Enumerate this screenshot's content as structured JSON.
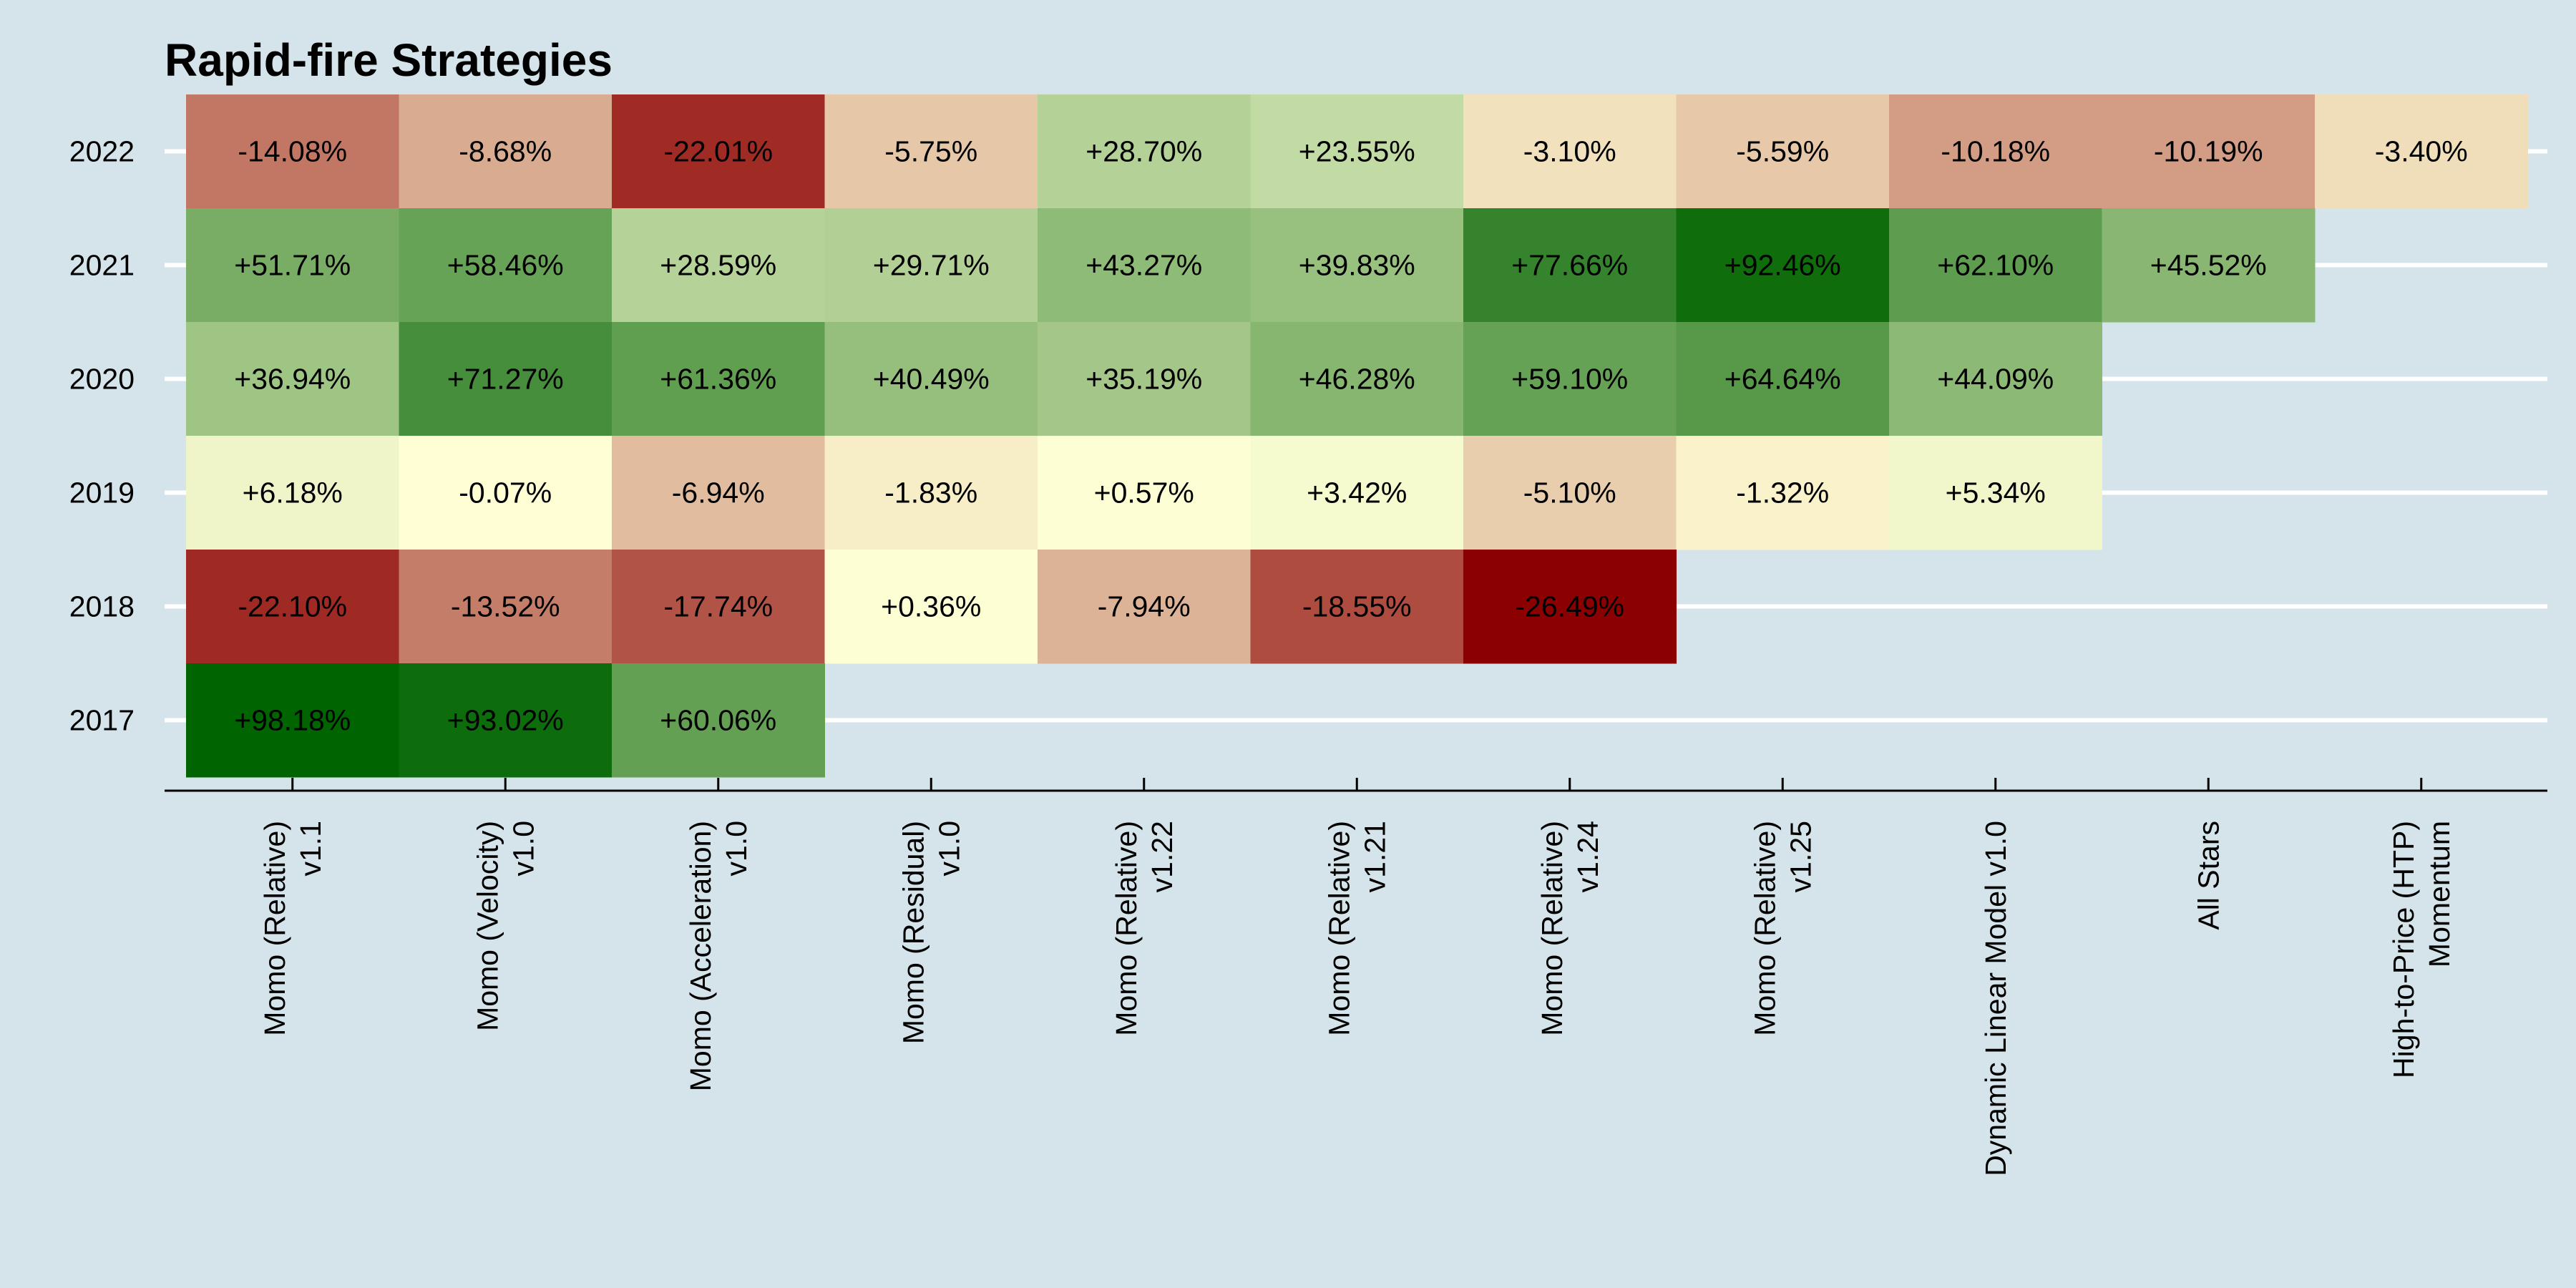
{
  "chart_data": {
    "type": "heatmap",
    "title": "Rapid-fire Strategies",
    "xlabel": "",
    "ylabel": "",
    "legend": "none",
    "grid": "horizontal",
    "years": [
      "2022",
      "2021",
      "2020",
      "2019",
      "2018",
      "2017"
    ],
    "strategies": [
      [
        "Momo (Relative)",
        "v1.1"
      ],
      [
        "Momo (Velocity)",
        "v1.0"
      ],
      [
        "Momo (Acceleration)",
        "v1.0"
      ],
      [
        "Momo (Residual)",
        "v1.0"
      ],
      [
        "Momo (Relative)",
        "v1.22"
      ],
      [
        "Momo (Relative)",
        "v1.21"
      ],
      [
        "Momo (Relative)",
        "v1.24"
      ],
      [
        "Momo (Relative)",
        "v1.25"
      ],
      [
        "Dynamic Linear Model v1.0"
      ],
      [
        "All Stars"
      ],
      [
        "High-to-Price (HTP)",
        "Momentum"
      ]
    ],
    "values": [
      [
        -14.08,
        -8.68,
        -22.01,
        -5.75,
        28.7,
        23.55,
        -3.1,
        -5.59,
        -10.18,
        -10.19,
        -3.4
      ],
      [
        51.71,
        58.46,
        28.59,
        29.71,
        43.27,
        39.83,
        77.66,
        92.46,
        62.1,
        45.52,
        null
      ],
      [
        36.94,
        71.27,
        61.36,
        40.49,
        35.19,
        46.28,
        59.1,
        64.64,
        44.09,
        null,
        null
      ],
      [
        6.18,
        -0.07,
        -6.94,
        -1.83,
        0.57,
        3.42,
        -5.1,
        -1.32,
        5.34,
        null,
        null
      ],
      [
        -22.1,
        -13.52,
        -17.74,
        0.36,
        -7.94,
        -18.55,
        -26.49,
        null,
        null,
        null,
        null
      ],
      [
        98.18,
        93.02,
        60.06,
        null,
        null,
        null,
        null,
        null,
        null,
        null,
        null
      ]
    ],
    "labels": [
      [
        "-14.08%",
        "-8.68%",
        "-22.01%",
        "-5.75%",
        "+28.70%",
        "+23.55%",
        "-3.10%",
        "-5.59%",
        "-10.18%",
        "-10.19%",
        "-3.40%"
      ],
      [
        "+51.71%",
        "+58.46%",
        "+28.59%",
        "+29.71%",
        "+43.27%",
        "+39.83%",
        "+77.66%",
        "+92.46%",
        "+62.10%",
        "+45.52%",
        ""
      ],
      [
        "+36.94%",
        "+71.27%",
        "+61.36%",
        "+40.49%",
        "+35.19%",
        "+46.28%",
        "+59.10%",
        "+64.64%",
        "+44.09%",
        "",
        ""
      ],
      [
        "+6.18%",
        "-0.07%",
        "-6.94%",
        "-1.83%",
        "+0.57%",
        "+3.42%",
        "-5.10%",
        "-1.32%",
        "+5.34%",
        "",
        ""
      ],
      [
        "-22.10%",
        "-13.52%",
        "-17.74%",
        "+0.36%",
        "-7.94%",
        "-18.55%",
        "-26.49%",
        "",
        "",
        "",
        ""
      ],
      [
        "+98.18%",
        "+93.02%",
        "+60.06%",
        "",
        "",
        "",
        "",
        "",
        "",
        "",
        ""
      ]
    ],
    "color_scale": {
      "min": -26.49,
      "zero": 0,
      "max": 98.18,
      "low_color": "#8b0000",
      "mid_color": "#ffffd6",
      "high_color": "#006400"
    },
    "colors": {
      "background": "#d5e4eb",
      "gridline": "#ffffff",
      "axis": "#000000",
      "text": "#000000"
    }
  }
}
